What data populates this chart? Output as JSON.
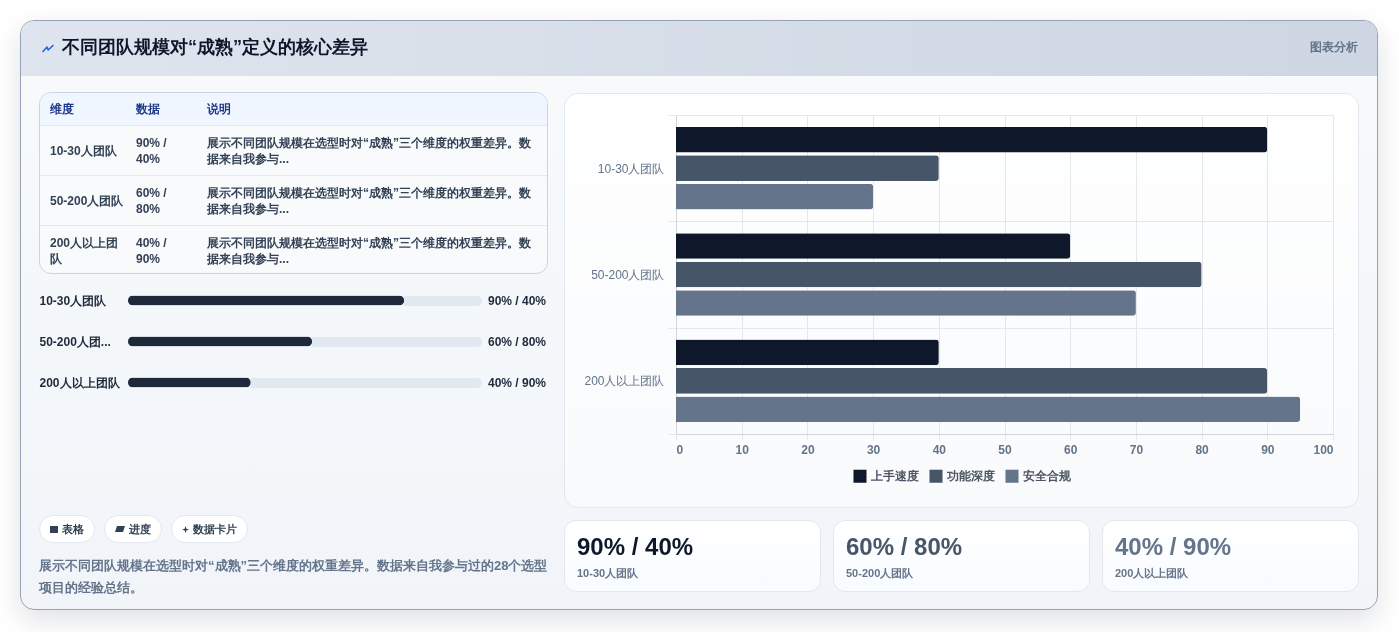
{
  "chart_data": [
    {
      "type": "other",
      "title": "不同团队规模对“成熟”定义的核心差异",
      "annotations": [
        "图表分析"
      ]
    },
    {
      "type": "other",
      "annotations": [
        "维度",
        "数据",
        "说明",
        "10-30人团队",
        "90% / 40%",
        "展示不同团队规模在选型时对“成熟”三个维度的权重差异。数据来自我参与...",
        "50-200人团队",
        "60% / 80%",
        "展示不同团队规模在选型时对“成熟”三个维度的权重差异。数据来自我参与...",
        "200人以上团队",
        "40% / 90%",
        "展示不同团队规模在选型时对“成熟”三个维度的权重差异。数据来自我参与..."
      ]
    },
    {
      "type": "bar",
      "orientation": "horizontal",
      "categories": [
        "10-30人团队",
        "50-200人团...",
        "200人以上团队"
      ],
      "values": [
        90,
        60,
        40
      ],
      "value_labels": [
        "90% / 40%",
        "60% / 80%",
        "40% / 90%"
      ],
      "color": "#1e293b"
    },
    {
      "type": "other",
      "annotations": [
        "表格",
        "进度",
        "数据卡片",
        "展示不同团队规模在选型时对“成熟”三个维度的权重差异。数据来自我参与过的28个选型项目的经验总结。"
      ]
    },
    {
      "type": "bar",
      "orientation": "horizontal",
      "categories": [
        "10-30人团队",
        "50-200人团队",
        "200人以上团队"
      ],
      "series": [
        {
          "name": "上手速度",
          "color": "#0f172a",
          "values": [
            90,
            60,
            40
          ]
        },
        {
          "name": "功能深度",
          "color": "#475569",
          "values": [
            40,
            80,
            90
          ]
        },
        {
          "name": "安全合规",
          "color": "#64748b",
          "values": [
            30,
            70,
            95
          ]
        }
      ],
      "xlim": [
        0,
        100
      ],
      "xticks": [
        0,
        10,
        20,
        30,
        40,
        50,
        60,
        70,
        80,
        90,
        100
      ],
      "grid": true,
      "legend": "bottom"
    },
    {
      "type": "other",
      "annotations": [
        "90% / 40%",
        "10-30人团队",
        "60% / 80%",
        "50-200人团队",
        "40% / 90%",
        "200人以上团队"
      ],
      "colors": [
        "#0f172a",
        "#475569",
        "#64748b"
      ]
    }
  ]
}
